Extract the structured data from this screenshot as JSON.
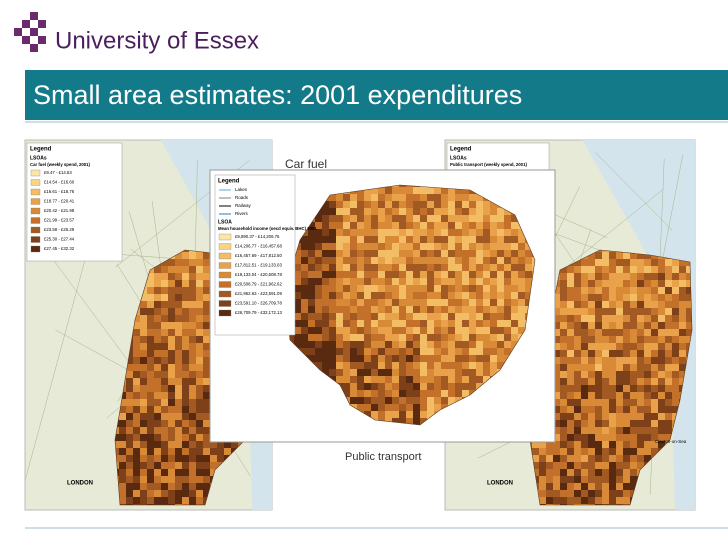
{
  "header": {
    "logo_text": "University of Essex"
  },
  "title": "Small area estimates: 2001 expenditures",
  "labels": {
    "car_fuel": "Car fuel",
    "public_transport": "Public transport"
  },
  "maps": {
    "left": {
      "legend_title": "Legend",
      "layer": "LSOAs",
      "variable": "Car fuel (weekly spend, 2001)",
      "classes": [
        "£9.47 - £14.53",
        "£14.54 - £16.60",
        "£16.61 - £18.76",
        "£18.77 - £20.41",
        "£20.42 - £21.98",
        "£21.99 - £23.57",
        "£23.58 - £25.29",
        "£25.30 - £27.44",
        "£27.45 - £32.32"
      ],
      "places": [
        "LONDON"
      ]
    },
    "center": {
      "legend_title": "Legend",
      "layers": [
        "Lakes",
        "Roads",
        "Railway",
        "Rivers"
      ],
      "layer": "LSOA",
      "variable": "Mean household income (oecd equiv. BHC) 2001",
      "classes": [
        "£9,890.37 - £14,206.76",
        "£14,206.77 - £16,457.68",
        "£16,457.69 - £17,812.50",
        "£17,812.51 - £19,133.03",
        "£19,133.04 - £20,508.78",
        "£20,508.79 - £21,962.62",
        "£21,962.63 - £23,591.09",
        "£23,591.10 - £26,709.78",
        "£26,709.79 - £32,172.13"
      ]
    },
    "right": {
      "legend_title": "Legend",
      "layer": "LSOAs",
      "variable": "Public transport (weekly spend, 2001)",
      "places": [
        "LONDON",
        "Clacton-on-Sea"
      ]
    }
  }
}
